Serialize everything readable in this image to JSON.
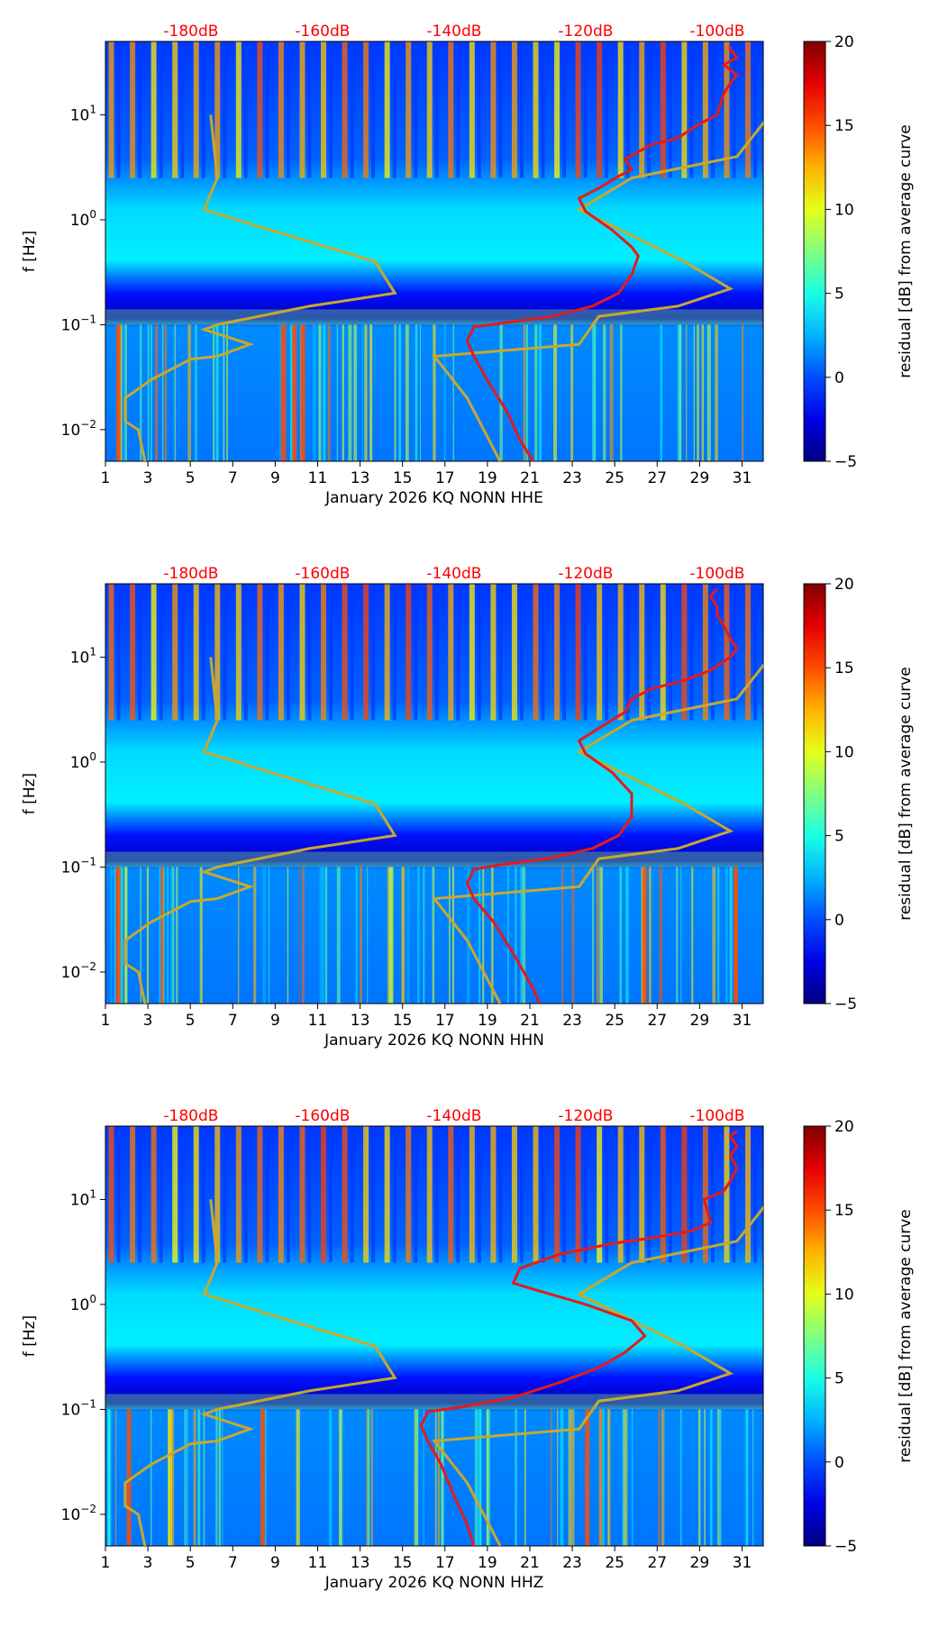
{
  "panels": [
    {
      "id": "HHE",
      "xlabel": "January 2026 KQ NONN  HHE",
      "red_curve": [
        [
          -98,
          45
        ],
        [
          -98,
          42
        ],
        [
          -97,
          35
        ],
        [
          -99,
          30
        ],
        [
          -97,
          24
        ],
        [
          -98,
          20
        ],
        [
          -99,
          16
        ],
        [
          -100,
          10
        ],
        [
          -103,
          8
        ],
        [
          -106,
          6
        ],
        [
          -110,
          5.2
        ],
        [
          -114,
          3.8
        ],
        [
          -113,
          3.0
        ],
        [
          -115,
          2.6
        ],
        [
          -118,
          2.0
        ],
        [
          -121,
          1.6
        ],
        [
          -120,
          1.2
        ],
        [
          -116,
          0.8
        ],
        [
          -113,
          0.55
        ],
        [
          -112,
          0.45
        ],
        [
          -113,
          0.3
        ],
        [
          -115,
          0.2
        ],
        [
          -119,
          0.15
        ],
        [
          -125,
          0.12
        ],
        [
          -132,
          0.105
        ],
        [
          -137,
          0.095
        ],
        [
          -138,
          0.07
        ],
        [
          -137,
          0.05
        ],
        [
          -135,
          0.03
        ],
        [
          -132,
          0.015
        ],
        [
          -130,
          0.008
        ],
        [
          -128,
          0.005
        ]
      ]
    },
    {
      "id": "HHN",
      "xlabel": "January 2026 KQ NONN  HHN",
      "red_curve": [
        [
          -100,
          45
        ],
        [
          -101,
          38
        ],
        [
          -100,
          30
        ],
        [
          -100,
          25
        ],
        [
          -99,
          20
        ],
        [
          -98,
          15
        ],
        [
          -97,
          12
        ],
        [
          -98,
          10
        ],
        [
          -101,
          7.5
        ],
        [
          -105,
          6
        ],
        [
          -110,
          5
        ],
        [
          -113,
          4
        ],
        [
          -114,
          3
        ],
        [
          -117,
          2.3
        ],
        [
          -121,
          1.6
        ],
        [
          -120,
          1.2
        ],
        [
          -116,
          0.8
        ],
        [
          -113,
          0.5
        ],
        [
          -113,
          0.3
        ],
        [
          -115,
          0.2
        ],
        [
          -119,
          0.15
        ],
        [
          -126,
          0.12
        ],
        [
          -133,
          0.105
        ],
        [
          -137,
          0.095
        ],
        [
          -138,
          0.07
        ],
        [
          -137,
          0.05
        ],
        [
          -134,
          0.03
        ],
        [
          -131,
          0.015
        ],
        [
          -128,
          0.007
        ],
        [
          -127,
          0.005
        ]
      ]
    },
    {
      "id": "HHZ",
      "xlabel": "January 2026 KQ NONN  HHZ",
      "red_curve": [
        [
          -97,
          45
        ],
        [
          -98,
          40
        ],
        [
          -97,
          32
        ],
        [
          -98,
          26
        ],
        [
          -97,
          20
        ],
        [
          -98,
          15
        ],
        [
          -99,
          12
        ],
        [
          -102,
          10
        ],
        [
          -101,
          6
        ],
        [
          -104,
          5
        ],
        [
          -110,
          4.3
        ],
        [
          -116,
          3.8
        ],
        [
          -124,
          3.0
        ],
        [
          -130,
          2.2
        ],
        [
          -131,
          1.6
        ],
        [
          -128,
          1.4
        ],
        [
          -120,
          1.0
        ],
        [
          -113,
          0.7
        ],
        [
          -111,
          0.5
        ],
        [
          -114,
          0.35
        ],
        [
          -118,
          0.25
        ],
        [
          -124,
          0.18
        ],
        [
          -131,
          0.13
        ],
        [
          -139,
          0.105
        ],
        [
          -144,
          0.095
        ],
        [
          -145,
          0.07
        ],
        [
          -144,
          0.05
        ],
        [
          -142,
          0.03
        ],
        [
          -140,
          0.015
        ],
        [
          -138,
          0.008
        ],
        [
          -137,
          0.005
        ]
      ]
    }
  ],
  "shared": {
    "ylabel": "f [Hz]",
    "colorbar_label": "residual [dB] from average curve",
    "colorbar_ticks": [
      "20",
      "15",
      "10",
      "5",
      "0",
      "−5"
    ],
    "colorbar_range": [
      -5,
      20
    ],
    "x_ticks": [
      "1",
      "3",
      "5",
      "7",
      "9",
      "11",
      "13",
      "15",
      "17",
      "19",
      "21",
      "23",
      "25",
      "27",
      "29",
      "31"
    ],
    "x_range": [
      1,
      32
    ],
    "y_ticks": [
      {
        "base": "10",
        "exp": "1",
        "value": 10
      },
      {
        "base": "10",
        "exp": "0",
        "value": 1
      },
      {
        "base": "10",
        "exp": "−1",
        "value": 0.1
      },
      {
        "base": "10",
        "exp": "−2",
        "value": 0.01
      }
    ],
    "y_range": [
      0.005,
      50
    ],
    "db_ticks": [
      {
        "label": "-180dB",
        "value": -180
      },
      {
        "label": "-160dB",
        "value": -160
      },
      {
        "label": "-140dB",
        "value": -140
      },
      {
        "label": "-120dB",
        "value": -120
      },
      {
        "label": "-100dB",
        "value": -100
      }
    ],
    "db_range": [
      -193,
      -93
    ],
    "colors": {
      "dB_label": "#ff0000",
      "red_curve": "#e41a1c",
      "model_curve": "#c7a82e"
    }
  },
  "chart_data": {
    "type": "heatmap",
    "title": "",
    "description_values": "spectrogram residual panels with overlaid noise model (NLNM/NHNM) and median PSD curve",
    "x_unit": "day of month",
    "y_unit": "Hz",
    "model_curves_dB_vs_Hz": {
      "low_noise_model": [
        [
          -177,
          10
        ],
        [
          -176,
          2.5
        ],
        [
          -178,
          1.25
        ],
        [
          -168,
          0.8
        ],
        [
          -152,
          0.4
        ],
        [
          -149,
          0.2
        ],
        [
          -162,
          0.15
        ],
        [
          -176,
          0.1
        ],
        [
          -178,
          0.09
        ],
        [
          -171,
          0.065
        ],
        [
          -176,
          0.05
        ],
        [
          -180,
          0.047
        ],
        [
          -186,
          0.03
        ],
        [
          -190,
          0.02
        ],
        [
          -190,
          0.012
        ],
        [
          -188,
          0.01
        ],
        [
          -187,
          0.005
        ]
      ],
      "high_noise_model": [
        [
          -92,
          10
        ],
        [
          -97,
          4
        ],
        [
          -113,
          2.5
        ],
        [
          -121,
          1.25
        ],
        [
          -105,
          0.4
        ],
        [
          -98,
          0.22
        ],
        [
          -106,
          0.15
        ],
        [
          -118,
          0.12
        ],
        [
          -121,
          0.065
        ],
        [
          -143,
          0.05
        ],
        [
          -138,
          0.02
        ],
        [
          -133,
          0.005
        ]
      ]
    }
  }
}
